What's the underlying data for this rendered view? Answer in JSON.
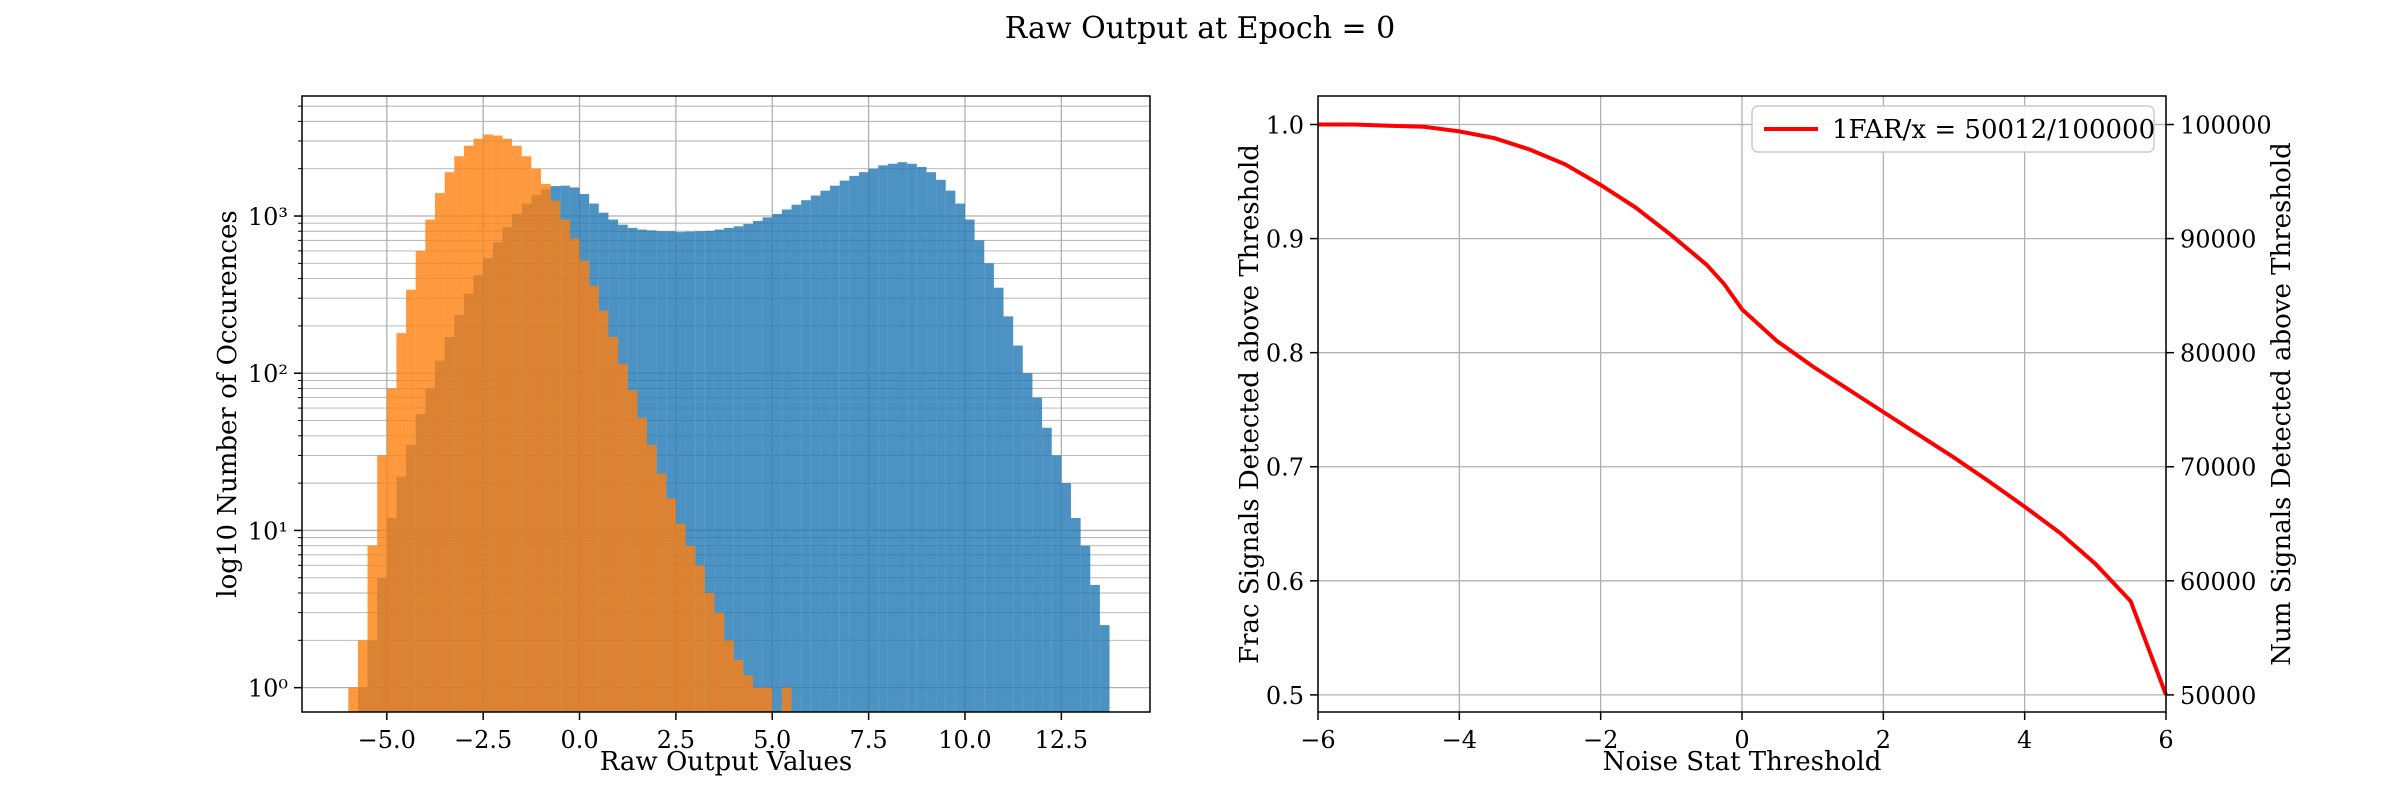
{
  "figure": {
    "title": "Raw Output at Epoch = 0"
  },
  "chart_data": [
    {
      "type": "histogram",
      "xlabel": "Raw Output Values",
      "ylabel": "log10 Number of Occurences",
      "xlim": [
        -7.2,
        14.8
      ],
      "ylim": [
        0.7,
        5800
      ],
      "yscale": "log",
      "x_tick_labels": [
        "−5.0",
        "−2.5",
        "0.0",
        "2.5",
        "5.0",
        "7.5",
        "10.0",
        "12.5"
      ],
      "y_tick_labels": [
        "10⁰",
        "10¹",
        "10²",
        "10³"
      ],
      "grid": true,
      "bin_width": 0.25,
      "series": [
        {
          "color": "#1f77b4",
          "bins": [
            [
              -5.75,
              1
            ],
            [
              -5.5,
              2
            ],
            [
              -5.25,
              5
            ],
            [
              -5,
              12
            ],
            [
              -4.75,
              22
            ],
            [
              -4.5,
              35
            ],
            [
              -4.25,
              55
            ],
            [
              -4,
              80
            ],
            [
              -3.75,
              120
            ],
            [
              -3.5,
              170
            ],
            [
              -3.25,
              235
            ],
            [
              -3,
              320
            ],
            [
              -2.75,
              420
            ],
            [
              -2.5,
              540
            ],
            [
              -2.25,
              680
            ],
            [
              -2,
              850
            ],
            [
              -1.75,
              1030
            ],
            [
              -1.5,
              1200
            ],
            [
              -1.25,
              1360
            ],
            [
              -1,
              1480
            ],
            [
              -0.75,
              1550
            ],
            [
              -0.5,
              1560
            ],
            [
              -0.25,
              1520
            ],
            [
              0,
              1380
            ],
            [
              0.25,
              1200
            ],
            [
              0.5,
              1050
            ],
            [
              0.75,
              950
            ],
            [
              1,
              880
            ],
            [
              1.25,
              840
            ],
            [
              1.5,
              820
            ],
            [
              1.75,
              810
            ],
            [
              2,
              800
            ],
            [
              2.25,
              800
            ],
            [
              2.5,
              790
            ],
            [
              2.75,
              795
            ],
            [
              3,
              800
            ],
            [
              3.25,
              805
            ],
            [
              3.5,
              820
            ],
            [
              3.75,
              840
            ],
            [
              4,
              860
            ],
            [
              4.25,
              890
            ],
            [
              4.5,
              930
            ],
            [
              4.75,
              980
            ],
            [
              5,
              1030
            ],
            [
              5.25,
              1100
            ],
            [
              5.5,
              1180
            ],
            [
              5.75,
              1260
            ],
            [
              6,
              1350
            ],
            [
              6.25,
              1450
            ],
            [
              6.5,
              1560
            ],
            [
              6.75,
              1680
            ],
            [
              7,
              1800
            ],
            [
              7.25,
              1900
            ],
            [
              7.5,
              2000
            ],
            [
              7.75,
              2100
            ],
            [
              8,
              2150
            ],
            [
              8.25,
              2200
            ],
            [
              8.5,
              2150
            ],
            [
              8.75,
              2050
            ],
            [
              9,
              1900
            ],
            [
              9.25,
              1700
            ],
            [
              9.5,
              1450
            ],
            [
              9.75,
              1200
            ],
            [
              10,
              950
            ],
            [
              10.25,
              700
            ],
            [
              10.5,
              500
            ],
            [
              10.75,
              350
            ],
            [
              11,
              230
            ],
            [
              11.25,
              150
            ],
            [
              11.5,
              100
            ],
            [
              11.75,
              70
            ],
            [
              12,
              45
            ],
            [
              12.25,
              30
            ],
            [
              12.5,
              20
            ],
            [
              12.75,
              12
            ],
            [
              13,
              8
            ],
            [
              13.25,
              4.5
            ],
            [
              13.5,
              2.5
            ]
          ]
        },
        {
          "color": "#ff7f0e",
          "bins": [
            [
              -6,
              1
            ],
            [
              -5.75,
              2
            ],
            [
              -5.5,
              8
            ],
            [
              -5.25,
              30
            ],
            [
              -5,
              80
            ],
            [
              -4.75,
              180
            ],
            [
              -4.5,
              340
            ],
            [
              -4.25,
              600
            ],
            [
              -4,
              950
            ],
            [
              -3.75,
              1400
            ],
            [
              -3.5,
              1900
            ],
            [
              -3.25,
              2400
            ],
            [
              -3,
              2800
            ],
            [
              -2.75,
              3100
            ],
            [
              -2.5,
              3300
            ],
            [
              -2.25,
              3250
            ],
            [
              -2,
              3100
            ],
            [
              -1.75,
              2800
            ],
            [
              -1.5,
              2400
            ],
            [
              -1.25,
              2000
            ],
            [
              -1,
              1600
            ],
            [
              -0.75,
              1250
            ],
            [
              -0.5,
              950
            ],
            [
              -0.25,
              720
            ],
            [
              0,
              520
            ],
            [
              0.25,
              360
            ],
            [
              0.5,
              250
            ],
            [
              0.75,
              170
            ],
            [
              1,
              115
            ],
            [
              1.25,
              78
            ],
            [
              1.5,
              52
            ],
            [
              1.75,
              35
            ],
            [
              2,
              23
            ],
            [
              2.25,
              16
            ],
            [
              2.5,
              11
            ],
            [
              2.75,
              8
            ],
            [
              3,
              6
            ],
            [
              3.25,
              4
            ],
            [
              3.5,
              3
            ],
            [
              3.75,
              2
            ],
            [
              4,
              1.5
            ],
            [
              4.25,
              1.2
            ],
            [
              4.5,
              1
            ],
            [
              4.75,
              1
            ],
            [
              5.25,
              1
            ]
          ]
        }
      ]
    },
    {
      "type": "line",
      "xlabel": "Noise Stat Threshold",
      "ylabel": "Frac Signals Detected above Threshold",
      "ylabel_right": "Num Signals Detected above Threshold",
      "xlim": [
        -6,
        6
      ],
      "ylim": [
        0.485,
        1.025
      ],
      "ylim_right": [
        48500,
        102500
      ],
      "x_tick_labels": [
        "−6",
        "−4",
        "−2",
        "0",
        "2",
        "4",
        "6"
      ],
      "y_tick_labels": [
        "0.5",
        "0.6",
        "0.7",
        "0.8",
        "0.9",
        "1.0"
      ],
      "y_right_tick_labels": [
        "50000",
        "60000",
        "70000",
        "80000",
        "90000",
        "100000"
      ],
      "grid": true,
      "legend": {
        "position": "top-right",
        "label": "1FAR/x = 50012/100000"
      },
      "series": [
        {
          "name": "1FAR/x = 50012/100000",
          "color": "#ff0000",
          "x": [
            -6,
            -5.5,
            -5,
            -4.5,
            -4,
            -3.5,
            -3,
            -2.5,
            -2,
            -1.5,
            -1,
            -0.5,
            -0.25,
            0,
            0.5,
            1,
            1.5,
            2,
            2.5,
            3,
            3.5,
            4,
            4.5,
            5,
            5.5,
            6
          ],
          "y": [
            1.0,
            1.0,
            0.999,
            0.998,
            0.994,
            0.988,
            0.978,
            0.965,
            0.947,
            0.927,
            0.903,
            0.877,
            0.86,
            0.838,
            0.81,
            0.788,
            0.768,
            0.748,
            0.728,
            0.708,
            0.687,
            0.665,
            0.642,
            0.615,
            0.582,
            0.5
          ]
        }
      ]
    }
  ]
}
